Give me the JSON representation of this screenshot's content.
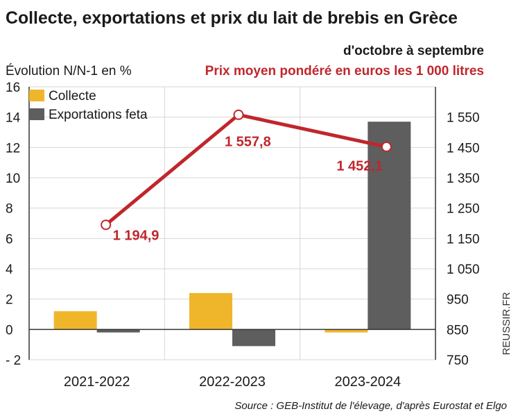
{
  "chart_data": {
    "type": "bar",
    "title": "Collecte, exportations et prix du lait de brebis en Grèce",
    "subtitle": "d'octobre à septembre",
    "ylabel": "Évolution N/N-1 en %",
    "y2label": "Prix moyen pondéré en euros les 1 000 litres",
    "categories": [
      "2021-2022",
      "2022-2023",
      "2023-2024"
    ],
    "ylim": [
      -2,
      16
    ],
    "yticks": [
      -2,
      0,
      2,
      4,
      6,
      8,
      10,
      12,
      14,
      16
    ],
    "ytick_labels": [
      "- 2",
      "0",
      "2",
      "4",
      "6",
      "8",
      "10",
      "12",
      "14",
      "16"
    ],
    "y2lim": [
      750,
      1650
    ],
    "y2ticks": [
      750,
      850,
      950,
      1050,
      1150,
      1250,
      1350,
      1450,
      1550
    ],
    "y2tick_labels": [
      "750",
      "850",
      "950",
      "1 050",
      "1 150",
      "1 250",
      "1 350",
      "1 450",
      "1 550"
    ],
    "series": [
      {
        "name": "Collecte",
        "kind": "bar",
        "axis": "left",
        "color": "#F0B62B",
        "values": [
          1.2,
          2.4,
          -0.2
        ]
      },
      {
        "name": "Exportations feta",
        "kind": "bar",
        "axis": "left",
        "color": "#5E5E5E",
        "values": [
          -0.2,
          -1.1,
          13.7
        ]
      },
      {
        "name": "Prix moyen pondéré",
        "kind": "line",
        "axis": "right",
        "color": "#C0262C",
        "values": [
          1194.9,
          1557.8,
          1452.1
        ],
        "labels": [
          "1 194,9",
          "1 557,8",
          "1 452,1"
        ]
      }
    ],
    "legend": "top-left",
    "grid": true,
    "watermark": "REUSSIR.FR",
    "source": "Source : GEB-Institut de l'élevage, d'après Eurostat et Elgo"
  },
  "colors": {
    "title": "#1a1a1a",
    "accent_red": "#C0262C",
    "grid": "#d6d6d6",
    "axis": "#333333"
  }
}
